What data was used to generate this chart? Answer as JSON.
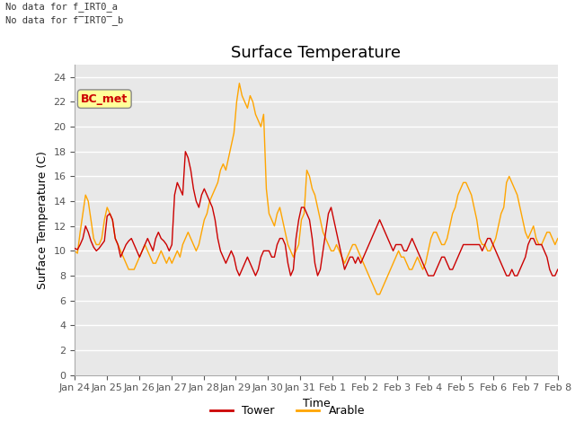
{
  "title": "Surface Temperature",
  "ylabel": "Surface Temperature (C)",
  "xlabel": "Time",
  "annotations": [
    "No data for f_IRT0_a",
    "No data for f̅IRT0̅_b"
  ],
  "box_label": "BC_met",
  "ylim": [
    0,
    25
  ],
  "yticks": [
    0,
    2,
    4,
    6,
    8,
    10,
    12,
    14,
    16,
    18,
    20,
    22,
    24
  ],
  "xtick_labels": [
    "Jan 24",
    "Jan 25",
    "Jan 26",
    "Jan 27",
    "Jan 28",
    "Jan 29",
    "Jan 30",
    "Jan 31",
    "Feb 1",
    "Feb 2",
    "Feb 3",
    "Feb 4",
    "Feb 5",
    "Feb 6",
    "Feb 7",
    "Feb 8"
  ],
  "background_color": "#e8e8e8",
  "tower_color": "#cc0000",
  "arable_color": "#ffa500",
  "legend_entries": [
    "Tower",
    "Arable"
  ],
  "title_fontsize": 13,
  "tick_fontsize": 8,
  "tower_data": [
    10.2,
    10.1,
    10.5,
    11.0,
    12.0,
    11.5,
    10.8,
    10.3,
    10.0,
    10.2,
    10.5,
    10.8,
    12.8,
    13.0,
    12.5,
    11.0,
    10.5,
    9.5,
    10.0,
    10.5,
    10.8,
    11.0,
    10.5,
    10.0,
    9.5,
    10.0,
    10.5,
    11.0,
    10.5,
    10.0,
    11.0,
    11.5,
    11.0,
    10.8,
    10.5,
    10.0,
    10.5,
    14.5,
    15.5,
    15.0,
    14.5,
    18.0,
    17.5,
    16.5,
    15.0,
    14.0,
    13.5,
    14.5,
    15.0,
    14.5,
    14.0,
    13.5,
    12.5,
    11.0,
    10.0,
    9.5,
    9.0,
    9.5,
    10.0,
    9.5,
    8.5,
    8.0,
    8.5,
    9.0,
    9.5,
    9.0,
    8.5,
    8.0,
    8.5,
    9.5,
    10.0,
    10.0,
    10.0,
    9.5,
    9.5,
    10.5,
    11.0,
    11.0,
    10.5,
    9.0,
    8.0,
    8.5,
    11.0,
    12.5,
    13.5,
    13.5,
    13.0,
    12.5,
    11.0,
    9.0,
    8.0,
    8.5,
    10.0,
    11.5,
    13.0,
    13.5,
    12.5,
    11.5,
    10.5,
    9.5,
    8.5,
    9.0,
    9.5,
    9.5,
    9.0,
    9.5,
    9.0,
    9.5,
    10.0,
    10.5,
    11.0,
    11.5,
    12.0,
    12.5,
    12.0,
    11.5,
    11.0,
    10.5,
    10.0,
    10.5,
    10.5,
    10.5,
    10.0,
    10.0,
    10.5,
    11.0,
    10.5,
    10.0,
    9.5,
    9.0,
    8.5,
    8.0,
    8.0,
    8.0,
    8.5,
    9.0,
    9.5,
    9.5,
    9.0,
    8.5,
    8.5,
    9.0,
    9.5,
    10.0,
    10.5,
    10.5,
    10.5,
    10.5,
    10.5,
    10.5,
    10.5,
    10.0,
    10.5,
    11.0,
    11.0,
    10.5,
    10.0,
    9.5,
    9.0,
    8.5,
    8.0,
    8.0,
    8.5,
    8.0,
    8.0,
    8.5,
    9.0,
    9.5,
    10.5,
    11.0,
    11.0,
    10.5,
    10.5,
    10.5,
    10.0,
    9.5,
    8.5,
    8.0,
    8.0,
    8.5
  ],
  "arable_data": [
    10.0,
    9.8,
    11.5,
    13.0,
    14.5,
    14.0,
    12.5,
    11.0,
    10.5,
    10.5,
    11.0,
    12.5,
    13.5,
    13.0,
    12.5,
    11.0,
    10.5,
    10.0,
    9.5,
    9.0,
    8.5,
    8.5,
    8.5,
    9.0,
    9.5,
    10.0,
    10.5,
    10.0,
    9.5,
    9.0,
    9.0,
    9.5,
    10.0,
    9.5,
    9.0,
    9.5,
    9.0,
    9.5,
    10.0,
    9.5,
    10.5,
    11.0,
    11.5,
    11.0,
    10.5,
    10.0,
    10.5,
    11.5,
    12.5,
    13.0,
    14.0,
    14.5,
    15.0,
    15.5,
    16.5,
    17.0,
    16.5,
    17.5,
    18.5,
    19.5,
    22.0,
    23.5,
    22.5,
    22.0,
    21.5,
    22.5,
    22.0,
    21.0,
    20.5,
    20.0,
    21.0,
    15.0,
    13.0,
    12.5,
    12.0,
    13.0,
    13.5,
    12.5,
    11.5,
    10.5,
    10.0,
    9.5,
    10.0,
    10.5,
    12.5,
    13.0,
    16.5,
    16.0,
    15.0,
    14.5,
    13.5,
    12.5,
    11.5,
    11.0,
    10.5,
    10.0,
    10.0,
    10.5,
    10.0,
    9.5,
    9.0,
    9.5,
    10.0,
    10.5,
    10.5,
    10.0,
    9.5,
    9.0,
    8.5,
    8.0,
    7.5,
    7.0,
    6.5,
    6.5,
    7.0,
    7.5,
    8.0,
    8.5,
    9.0,
    9.5,
    10.0,
    9.5,
    9.5,
    9.0,
    8.5,
    8.5,
    9.0,
    9.5,
    9.0,
    8.5,
    9.0,
    10.0,
    11.0,
    11.5,
    11.5,
    11.0,
    10.5,
    10.5,
    11.0,
    12.0,
    13.0,
    13.5,
    14.5,
    15.0,
    15.5,
    15.5,
    15.0,
    14.5,
    13.5,
    12.5,
    11.0,
    10.5,
    10.5,
    10.0,
    10.0,
    10.5,
    11.0,
    12.0,
    13.0,
    13.5,
    15.5,
    16.0,
    15.5,
    15.0,
    14.5,
    13.5,
    12.5,
    11.5,
    11.0,
    11.5,
    12.0,
    11.0,
    10.5,
    10.5,
    11.0,
    11.5,
    11.5,
    11.0,
    10.5,
    11.0
  ]
}
